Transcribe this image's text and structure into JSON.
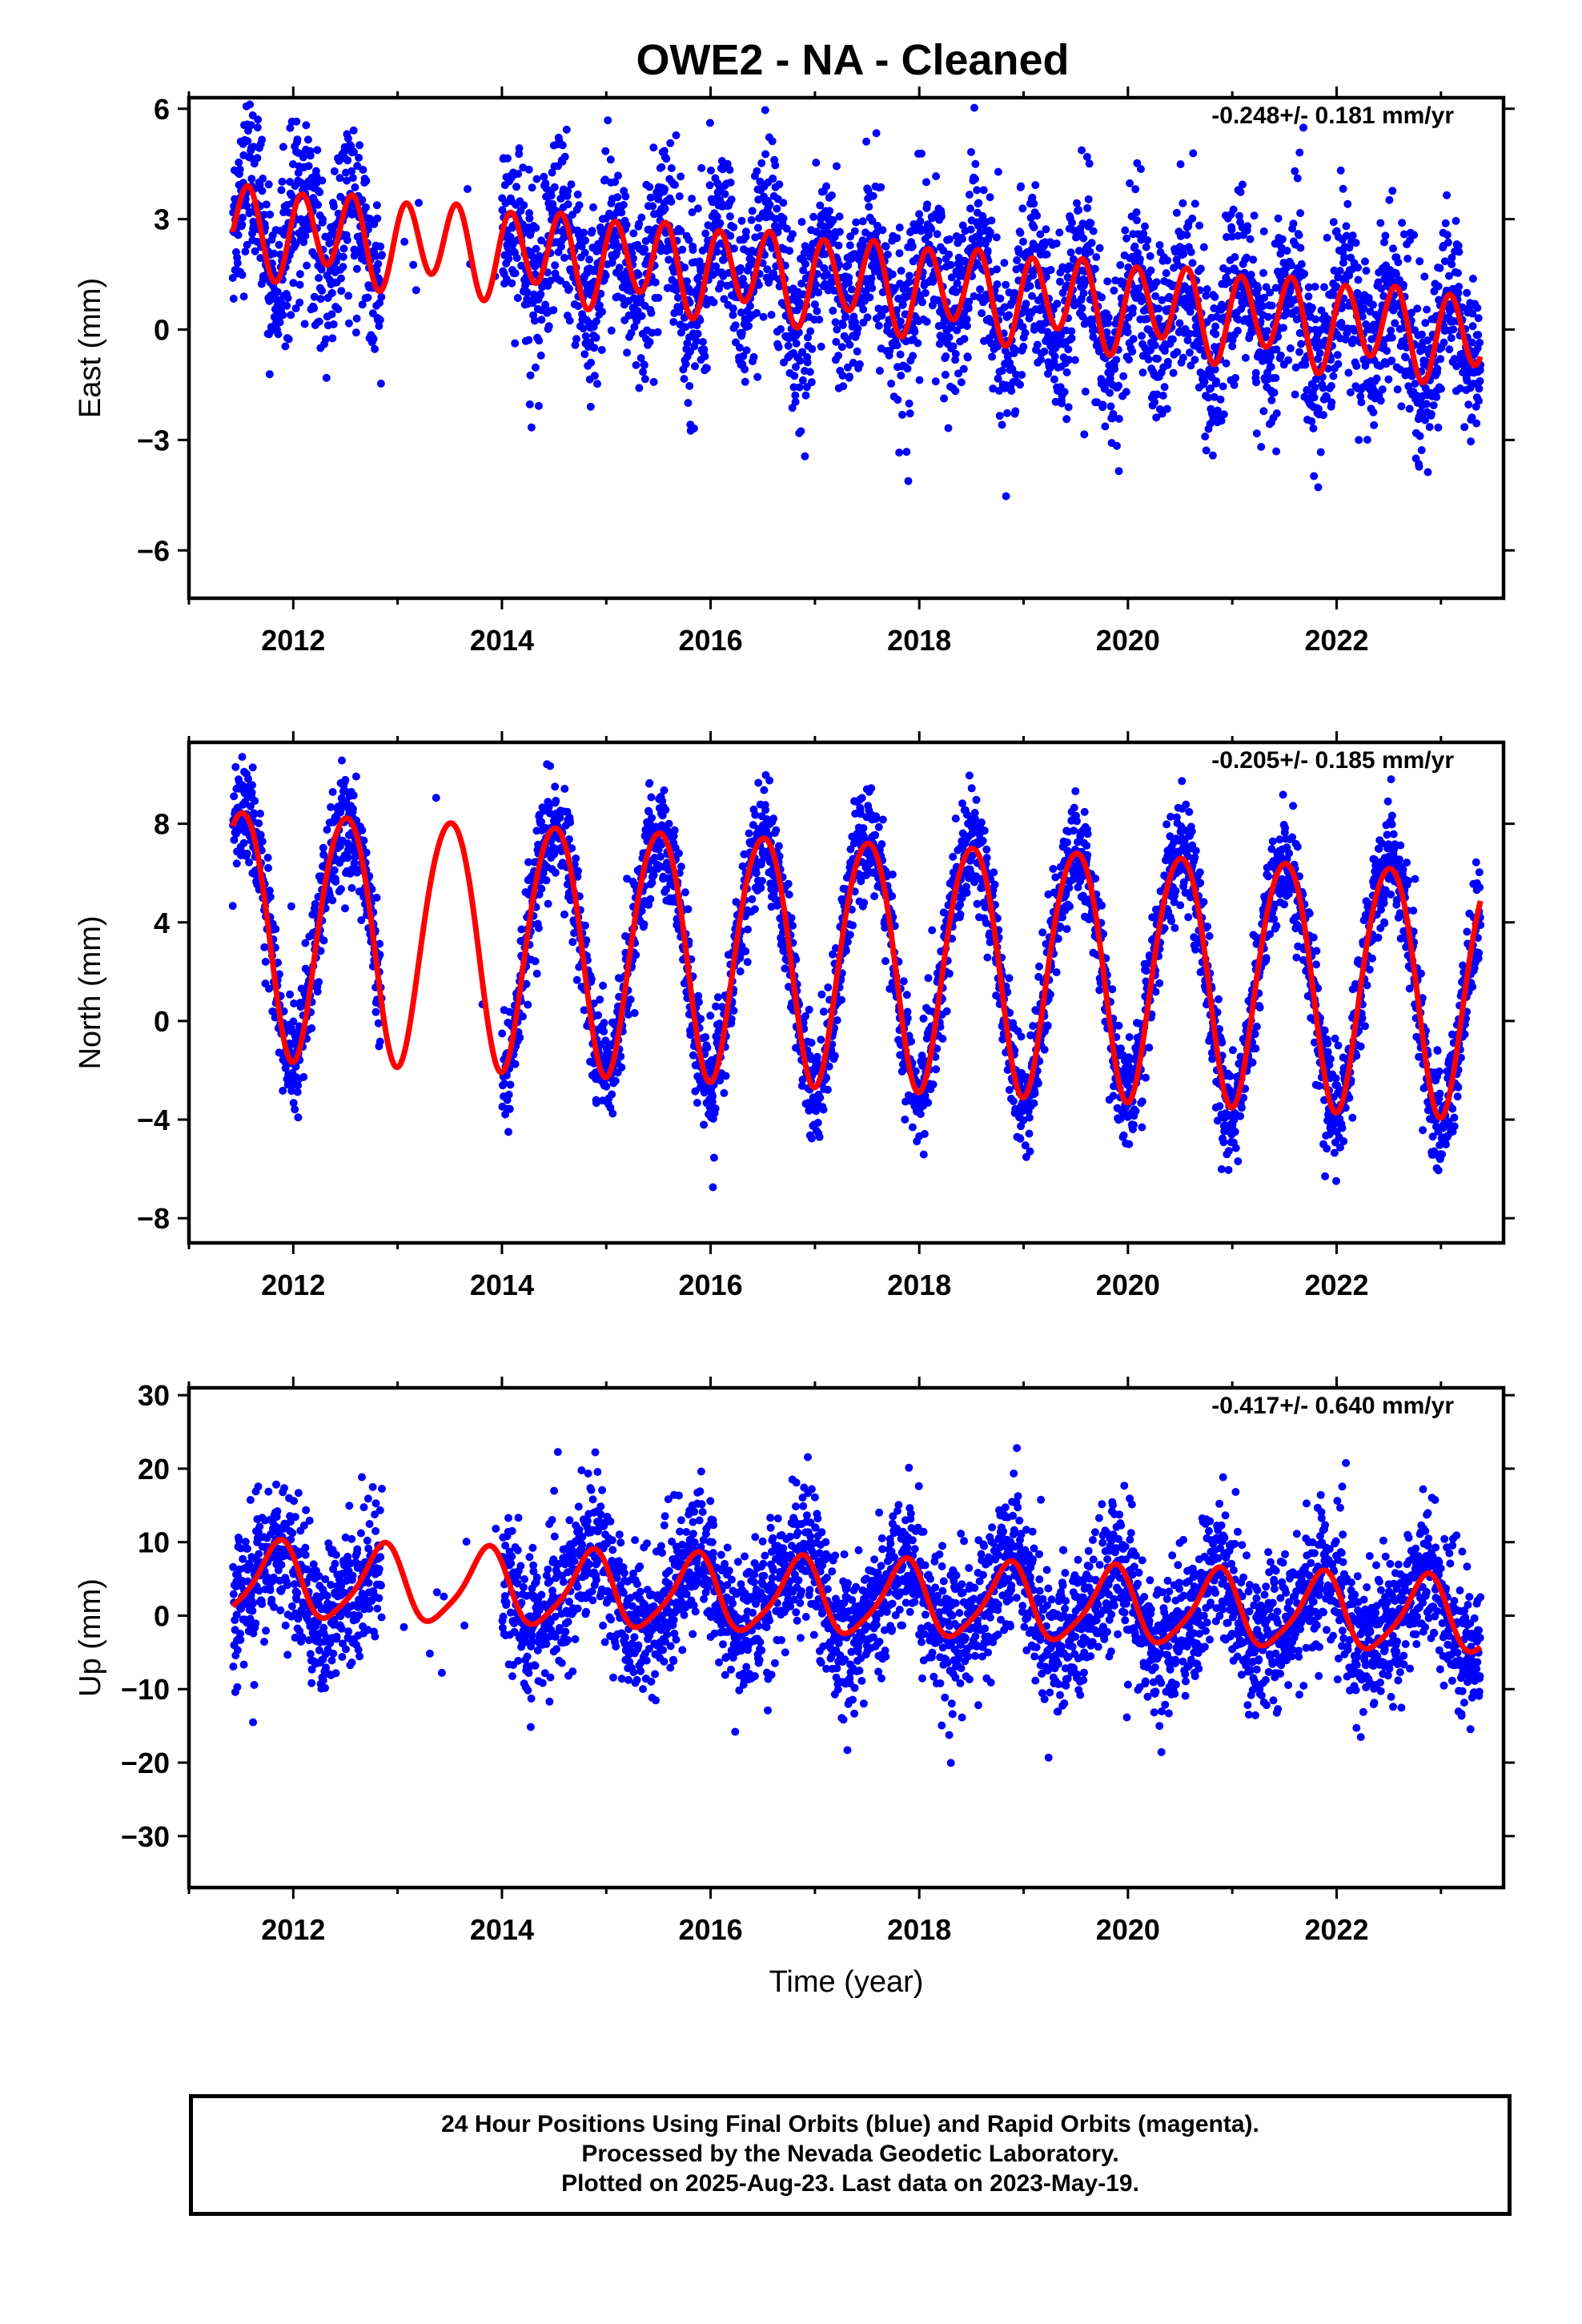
{
  "title": "OWE2  - NA - Cleaned",
  "footer": {
    "line1": "24 Hour Positions Using Final Orbits (blue) and Rapid Orbits (magenta).",
    "line2": "Processed by the Nevada Geodetic Laboratory.",
    "line3": "Plotted on 2025-Aug-23. Last data on 2023-May-19."
  },
  "colors": {
    "points": "#0000ff",
    "model": "#ff0000",
    "axes": "#000000"
  },
  "chart_data": [
    {
      "type": "scatter",
      "ylabel": "East (mm)",
      "xlabel": "",
      "rate_label": "-0.248+/- 0.181 mm/yr",
      "xlim": [
        2011.0,
        2023.6
      ],
      "ylim": [
        -7.3,
        6.3
      ],
      "x_ticks": [
        2012,
        2014,
        2016,
        2018,
        2020,
        2022
      ],
      "y_ticks": [
        -6,
        -3,
        0,
        3,
        6
      ],
      "y_tick_labels": [
        "−6",
        "−3",
        "0",
        "3",
        "6"
      ],
      "model": {
        "offset": 1.3,
        "trend": -0.248,
        "annual_amp": 0.3,
        "annual_phase": 0.1,
        "semiannual_amp": 1.1,
        "semiannual_phase": 0.45,
        "t0": 2011.42,
        "t1": 2023.38
      },
      "gap": [
        2012.85,
        2014.0
      ],
      "scatter_sigma": 1.2
    },
    {
      "type": "scatter",
      "ylabel": "North (mm)",
      "xlabel": "",
      "rate_label": "-0.205+/- 0.185 mm/yr",
      "xlim": [
        2011.0,
        2023.6
      ],
      "ylim": [
        -9.0,
        11.3
      ],
      "x_ticks": [
        2012,
        2014,
        2016,
        2018,
        2020,
        2022
      ],
      "y_ticks": [
        -8,
        -4,
        0,
        4,
        8
      ],
      "y_tick_labels": [
        "−8",
        "−4",
        "0",
        "4",
        "8"
      ],
      "model": {
        "offset": 2.6,
        "trend": -0.205,
        "annual_amp": 5.0,
        "annual_phase": 0.25,
        "semiannual_amp": 0.4,
        "semiannual_phase": 0.1,
        "t0": 2011.42,
        "t1": 2023.38
      },
      "gap": [
        2012.85,
        2014.0
      ],
      "scatter_sigma": 1.1
    },
    {
      "type": "scatter",
      "ylabel": "Up (mm)",
      "xlabel": "Time (year)",
      "rate_label": "-0.417+/- 0.640 mm/yr",
      "xlim": [
        2011.0,
        2023.6
      ],
      "ylim": [
        -37.0,
        31.0
      ],
      "x_ticks": [
        2012,
        2014,
        2016,
        2018,
        2020,
        2022
      ],
      "y_ticks": [
        -30,
        -20,
        -10,
        0,
        10,
        20,
        30
      ],
      "y_tick_labels": [
        "−30",
        "−20",
        "−10",
        "0",
        "10",
        "20",
        "30"
      ],
      "model": {
        "offset": 2.3,
        "trend": -0.417,
        "annual_amp": 5.0,
        "annual_phase": 0.6,
        "semiannual_amp": 1.0,
        "semiannual_phase": 0.3,
        "t0": 2011.42,
        "t1": 2023.38
      },
      "gap": [
        2012.85,
        2014.0
      ],
      "scatter_sigma": 4.8
    }
  ]
}
